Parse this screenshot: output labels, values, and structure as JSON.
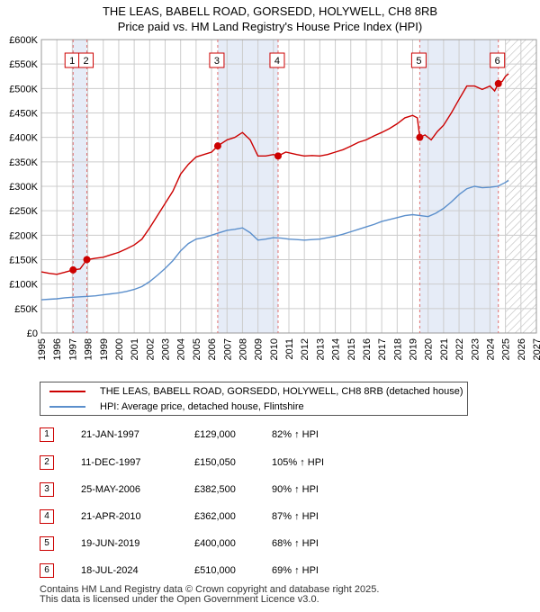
{
  "title": {
    "line1": "THE LEAS, BABELL ROAD, GORSEDD, HOLYWELL, CH8 8RB",
    "line2": "Price paid vs. HM Land Registry's House Price Index (HPI)"
  },
  "legend": {
    "property_label": "THE LEAS, BABELL ROAD, GORSEDD, HOLYWELL, CH8 8RB (detached house)",
    "hpi_label": "HPI: Average price, detached house, Flintshire"
  },
  "sales": [
    {
      "num": "1",
      "date": "21-JAN-1997",
      "price": "£129,000",
      "hpi": "82% ↑ HPI"
    },
    {
      "num": "2",
      "date": "11-DEC-1997",
      "price": "£150,050",
      "hpi": "105% ↑ HPI"
    },
    {
      "num": "3",
      "date": "25-MAY-2006",
      "price": "£382,500",
      "hpi": "90% ↑ HPI"
    },
    {
      "num": "4",
      "date": "21-APR-2010",
      "price": "£362,000",
      "hpi": "87% ↑ HPI"
    },
    {
      "num": "5",
      "date": "19-JUN-2019",
      "price": "£400,000",
      "hpi": "68% ↑ HPI"
    },
    {
      "num": "6",
      "date": "18-JUL-2024",
      "price": "£510,000",
      "hpi": "69% ↑ HPI"
    }
  ],
  "footer": {
    "line1": "Contains HM Land Registry data © Crown copyright and database right 2025.",
    "line2": "This data is licensed under the Open Government Licence v3.0."
  },
  "chart_data": {
    "type": "line",
    "colors": {
      "property": "#cc0000",
      "hpi": "#5b8fcc",
      "marker_line": "#e07070",
      "marker_box": "#cc0000",
      "shade": "#e6ecf7",
      "future_hatch": "#aaaaaa"
    },
    "xlim": [
      1995,
      2027
    ],
    "ylim": [
      0,
      600000
    ],
    "x_ticks": [
      "1995",
      "1996",
      "1997",
      "1998",
      "1999",
      "2000",
      "2001",
      "2002",
      "2003",
      "2004",
      "2005",
      "2006",
      "2007",
      "2008",
      "2009",
      "2010",
      "2011",
      "2012",
      "2013",
      "2014",
      "2015",
      "2016",
      "2017",
      "2018",
      "2019",
      "2020",
      "2021",
      "2022",
      "2023",
      "2024",
      "2025",
      "2026",
      "2027"
    ],
    "y_ticks": [
      {
        "value": 0,
        "label": "£0"
      },
      {
        "value": 50000,
        "label": "£50K"
      },
      {
        "value": 100000,
        "label": "£100K"
      },
      {
        "value": 150000,
        "label": "£150K"
      },
      {
        "value": 200000,
        "label": "£200K"
      },
      {
        "value": 250000,
        "label": "£250K"
      },
      {
        "value": 300000,
        "label": "£300K"
      },
      {
        "value": 350000,
        "label": "£350K"
      },
      {
        "value": 400000,
        "label": "£400K"
      },
      {
        "value": 450000,
        "label": "£450K"
      },
      {
        "value": 500000,
        "label": "£500K"
      },
      {
        "value": 550000,
        "label": "£550K"
      },
      {
        "value": 600000,
        "label": "£600K"
      }
    ],
    "grid": true,
    "future_start": 2025.0,
    "shaded_ranges": [
      [
        1997.05,
        1997.94
      ],
      [
        2006.4,
        2010.3
      ],
      [
        2019.46,
        2024.54
      ]
    ],
    "sale_markers": [
      {
        "num": "1",
        "x": 1997.05,
        "y": 129000
      },
      {
        "num": "2",
        "x": 1997.94,
        "y": 150050
      },
      {
        "num": "3",
        "x": 2006.4,
        "y": 382500
      },
      {
        "num": "4",
        "x": 2010.3,
        "y": 362000
      },
      {
        "num": "5",
        "x": 2019.46,
        "y": 400000
      },
      {
        "num": "6",
        "x": 2024.54,
        "y": 510000
      }
    ],
    "series": [
      {
        "name": "THE LEAS, BABELL ROAD, GORSEDD, HOLYWELL, CH8 8RB (detached house)",
        "key": "property",
        "points": [
          [
            1995.0,
            125000
          ],
          [
            1995.5,
            122000
          ],
          [
            1996.0,
            120000
          ],
          [
            1996.5,
            124000
          ],
          [
            1997.05,
            129000
          ],
          [
            1997.5,
            131000
          ],
          [
            1997.94,
            150050
          ],
          [
            1998.5,
            153000
          ],
          [
            1999.0,
            155000
          ],
          [
            1999.5,
            160000
          ],
          [
            2000.0,
            165000
          ],
          [
            2000.5,
            172000
          ],
          [
            2001.0,
            180000
          ],
          [
            2001.5,
            192000
          ],
          [
            2002.0,
            215000
          ],
          [
            2002.5,
            240000
          ],
          [
            2003.0,
            265000
          ],
          [
            2003.5,
            290000
          ],
          [
            2004.0,
            325000
          ],
          [
            2004.5,
            345000
          ],
          [
            2005.0,
            360000
          ],
          [
            2005.5,
            365000
          ],
          [
            2006.0,
            370000
          ],
          [
            2006.4,
            382500
          ],
          [
            2007.0,
            395000
          ],
          [
            2007.5,
            400000
          ],
          [
            2008.0,
            410000
          ],
          [
            2008.5,
            395000
          ],
          [
            2009.0,
            362000
          ],
          [
            2009.5,
            362000
          ],
          [
            2010.0,
            365000
          ],
          [
            2010.3,
            362000
          ],
          [
            2010.8,
            370000
          ],
          [
            2011.5,
            365000
          ],
          [
            2012.0,
            362000
          ],
          [
            2012.5,
            363000
          ],
          [
            2013.0,
            362000
          ],
          [
            2013.5,
            365000
          ],
          [
            2014.0,
            370000
          ],
          [
            2014.5,
            375000
          ],
          [
            2015.0,
            382000
          ],
          [
            2015.5,
            390000
          ],
          [
            2016.0,
            395000
          ],
          [
            2016.5,
            403000
          ],
          [
            2017.0,
            410000
          ],
          [
            2017.5,
            418000
          ],
          [
            2018.0,
            428000
          ],
          [
            2018.5,
            440000
          ],
          [
            2019.0,
            445000
          ],
          [
            2019.3,
            440000
          ],
          [
            2019.46,
            400000
          ],
          [
            2019.8,
            405000
          ],
          [
            2020.2,
            395000
          ],
          [
            2020.6,
            412000
          ],
          [
            2021.0,
            425000
          ],
          [
            2021.5,
            450000
          ],
          [
            2022.0,
            478000
          ],
          [
            2022.5,
            505000
          ],
          [
            2023.0,
            505000
          ],
          [
            2023.5,
            498000
          ],
          [
            2024.0,
            505000
          ],
          [
            2024.3,
            495000
          ],
          [
            2024.54,
            510000
          ],
          [
            2024.8,
            515000
          ],
          [
            2025.0,
            525000
          ],
          [
            2025.2,
            530000
          ]
        ]
      },
      {
        "name": "HPI: Average price, detached house, Flintshire",
        "key": "hpi",
        "points": [
          [
            1995.0,
            68000
          ],
          [
            1995.5,
            69000
          ],
          [
            1996.0,
            70000
          ],
          [
            1996.5,
            72000
          ],
          [
            1997.0,
            73000
          ],
          [
            1997.5,
            74000
          ],
          [
            1998.0,
            75000
          ],
          [
            1998.5,
            76000
          ],
          [
            1999.0,
            78000
          ],
          [
            1999.5,
            80000
          ],
          [
            2000.0,
            82000
          ],
          [
            2000.5,
            85000
          ],
          [
            2001.0,
            89000
          ],
          [
            2001.5,
            95000
          ],
          [
            2002.0,
            105000
          ],
          [
            2002.5,
            118000
          ],
          [
            2003.0,
            132000
          ],
          [
            2003.5,
            148000
          ],
          [
            2004.0,
            168000
          ],
          [
            2004.5,
            183000
          ],
          [
            2005.0,
            192000
          ],
          [
            2005.5,
            195000
          ],
          [
            2006.0,
            200000
          ],
          [
            2006.5,
            205000
          ],
          [
            2007.0,
            210000
          ],
          [
            2007.5,
            212000
          ],
          [
            2008.0,
            215000
          ],
          [
            2008.5,
            205000
          ],
          [
            2009.0,
            190000
          ],
          [
            2009.5,
            192000
          ],
          [
            2010.0,
            195000
          ],
          [
            2010.5,
            194000
          ],
          [
            2011.0,
            192000
          ],
          [
            2011.5,
            191000
          ],
          [
            2012.0,
            190000
          ],
          [
            2012.5,
            191000
          ],
          [
            2013.0,
            192000
          ],
          [
            2013.5,
            195000
          ],
          [
            2014.0,
            198000
          ],
          [
            2014.5,
            202000
          ],
          [
            2015.0,
            207000
          ],
          [
            2015.5,
            212000
          ],
          [
            2016.0,
            217000
          ],
          [
            2016.5,
            222000
          ],
          [
            2017.0,
            228000
          ],
          [
            2017.5,
            232000
          ],
          [
            2018.0,
            236000
          ],
          [
            2018.5,
            240000
          ],
          [
            2019.0,
            242000
          ],
          [
            2019.5,
            240000
          ],
          [
            2020.0,
            238000
          ],
          [
            2020.5,
            245000
          ],
          [
            2021.0,
            255000
          ],
          [
            2021.5,
            268000
          ],
          [
            2022.0,
            283000
          ],
          [
            2022.5,
            295000
          ],
          [
            2023.0,
            300000
          ],
          [
            2023.5,
            297000
          ],
          [
            2024.0,
            298000
          ],
          [
            2024.5,
            300000
          ],
          [
            2025.0,
            308000
          ],
          [
            2025.2,
            312000
          ]
        ]
      }
    ]
  }
}
